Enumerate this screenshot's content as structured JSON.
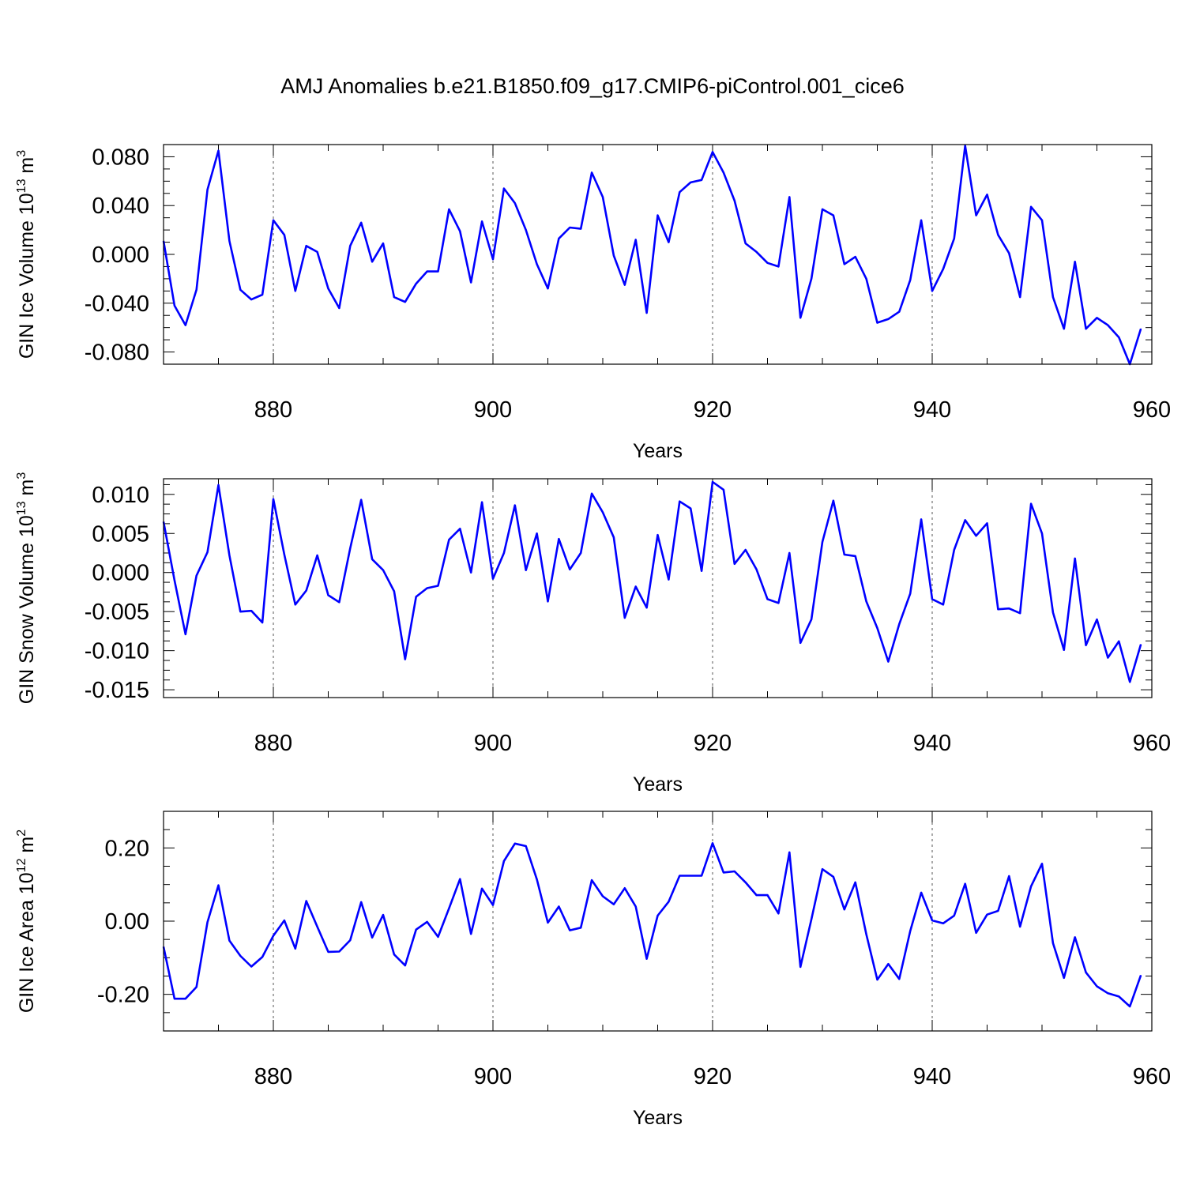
{
  "figure_title": "AMJ Anomalies b.e21.B1850.f09_g17.CMIP6-piControl.001_cice6",
  "line_color": "#0000ff",
  "chart_data": [
    {
      "type": "line",
      "ylabel_base": "GIN Ice Volume 10",
      "ylabel_exp": "13",
      "ylabel_unit": " m",
      "ylabel_unit_exp": "3",
      "xlabel": "Years",
      "xlim": [
        870,
        960
      ],
      "ylim": [
        -0.09,
        0.09
      ],
      "xticks": [
        880,
        900,
        920,
        940,
        960
      ],
      "xtick_labels": [
        "880",
        "900",
        "920",
        "940",
        "960"
      ],
      "yticks": [
        0.08,
        0.04,
        0.0,
        -0.04,
        -0.08
      ],
      "ytick_labels": [
        "0.080",
        "0.040",
        "0.000",
        "-0.040",
        "-0.080"
      ],
      "grid_x": [
        880,
        900,
        920,
        940
      ],
      "x_start": 870,
      "values": [
        0.011,
        -0.042,
        -0.058,
        -0.029,
        0.053,
        0.085,
        0.011,
        -0.029,
        -0.037,
        -0.033,
        0.028,
        0.016,
        -0.03,
        0.007,
        0.002,
        -0.028,
        -0.044,
        0.007,
        0.026,
        -0.006,
        0.009,
        -0.035,
        -0.039,
        -0.024,
        -0.014,
        -0.014,
        0.037,
        0.019,
        -0.023,
        0.027,
        -0.004,
        0.054,
        0.042,
        0.02,
        -0.008,
        -0.028,
        0.013,
        0.022,
        0.021,
        0.067,
        0.047,
        -0.001,
        -0.025,
        0.012,
        -0.048,
        0.032,
        0.01,
        0.051,
        0.059,
        0.061,
        0.084,
        0.067,
        0.044,
        0.009,
        0.002,
        -0.007,
        -0.01,
        0.047,
        -0.052,
        -0.02,
        0.037,
        0.032,
        -0.008,
        -0.002,
        -0.02,
        -0.056,
        -0.053,
        -0.047,
        -0.021,
        0.028,
        -0.03,
        -0.012,
        0.013,
        0.089,
        0.032,
        0.049,
        0.016,
        0.001,
        -0.035,
        0.039,
        0.028,
        -0.035,
        -0.061,
        -0.006,
        -0.061,
        -0.052,
        -0.058,
        -0.068,
        -0.09,
        -0.061
      ]
    },
    {
      "type": "line",
      "ylabel_base": "GIN Snow Volume 10",
      "ylabel_exp": "13",
      "ylabel_unit": " m",
      "ylabel_unit_exp": "3",
      "xlabel": "Years",
      "xlim": [
        870,
        960
      ],
      "ylim": [
        -0.016,
        0.012
      ],
      "xticks": [
        880,
        900,
        920,
        940,
        960
      ],
      "xtick_labels": [
        "880",
        "900",
        "920",
        "940",
        "960"
      ],
      "yticks": [
        0.01,
        0.005,
        0.0,
        -0.005,
        -0.01,
        -0.015
      ],
      "ytick_labels": [
        "0.010",
        "0.005",
        "0.000",
        "-0.005",
        "-0.010",
        "-0.015"
      ],
      "grid_x": [
        880,
        900,
        920,
        940
      ],
      "x_start": 870,
      "values": [
        0.0065,
        -0.001,
        -0.0079,
        -0.0004,
        0.0026,
        0.0112,
        0.0022,
        -0.005,
        -0.0049,
        -0.0064,
        0.0094,
        0.0023,
        -0.0041,
        -0.0023,
        0.0022,
        -0.0029,
        -0.0038,
        0.0031,
        0.0093,
        0.0017,
        0.0003,
        -0.0024,
        -0.0111,
        -0.0031,
        -0.002,
        -0.0017,
        0.0042,
        0.0056,
        0.0,
        0.009,
        -0.0008,
        0.0025,
        0.0086,
        0.0003,
        0.005,
        -0.0037,
        0.0043,
        0.0004,
        0.0025,
        0.0101,
        0.0077,
        0.0045,
        -0.0058,
        -0.0018,
        -0.0045,
        0.0048,
        -0.0009,
        0.0091,
        0.0082,
        0.0002,
        0.0116,
        0.0106,
        0.0011,
        0.0029,
        0.0004,
        -0.0034,
        -0.0039,
        0.0025,
        -0.009,
        -0.006,
        0.0039,
        0.0092,
        0.0023,
        0.0021,
        -0.0037,
        -0.0071,
        -0.0114,
        -0.0066,
        -0.0027,
        0.0068,
        -0.0034,
        -0.0041,
        0.0029,
        0.0067,
        0.0047,
        0.0063,
        -0.0047,
        -0.0046,
        -0.0052,
        0.0088,
        0.005,
        -0.0051,
        -0.0099,
        0.0018,
        -0.0093,
        -0.006,
        -0.0109,
        -0.0088,
        -0.014,
        -0.0092
      ]
    },
    {
      "type": "line",
      "ylabel_base": "GIN Ice Area 10",
      "ylabel_exp": "12",
      "ylabel_unit": " m",
      "ylabel_unit_exp": "2",
      "xlabel": "Years",
      "xlim": [
        870,
        960
      ],
      "ylim": [
        -0.3,
        0.3
      ],
      "xticks": [
        880,
        900,
        920,
        940,
        960
      ],
      "xtick_labels": [
        "880",
        "900",
        "920",
        "940",
        "960"
      ],
      "yticks": [
        0.2,
        0.0,
        -0.2
      ],
      "ytick_labels": [
        "0.20",
        "0.00",
        "-0.20"
      ],
      "grid_x": [
        880,
        900,
        920,
        940
      ],
      "x_start": 870,
      "values": [
        -0.07,
        -0.212,
        -0.212,
        -0.18,
        -0.003,
        0.098,
        -0.053,
        -0.095,
        -0.124,
        -0.098,
        -0.04,
        0.002,
        -0.075,
        0.055,
        -0.015,
        -0.084,
        -0.083,
        -0.052,
        0.052,
        -0.045,
        0.017,
        -0.091,
        -0.121,
        -0.023,
        -0.002,
        -0.043,
        0.035,
        0.115,
        -0.035,
        0.089,
        0.044,
        0.164,
        0.212,
        0.205,
        0.114,
        -0.004,
        0.04,
        -0.025,
        -0.018,
        0.112,
        0.068,
        0.046,
        0.09,
        0.04,
        -0.103,
        0.015,
        0.053,
        0.124,
        0.124,
        0.124,
        0.213,
        0.133,
        0.136,
        0.106,
        0.071,
        0.071,
        0.021,
        0.188,
        -0.125,
        0.005,
        0.142,
        0.121,
        0.032,
        0.106,
        -0.036,
        -0.16,
        -0.117,
        -0.158,
        -0.027,
        0.078,
        0.002,
        -0.006,
        0.015,
        0.102,
        -0.032,
        0.018,
        0.028,
        0.123,
        -0.015,
        0.095,
        0.157,
        -0.06,
        -0.155,
        -0.044,
        -0.14,
        -0.178,
        -0.197,
        -0.206,
        -0.233,
        -0.148
      ]
    }
  ]
}
